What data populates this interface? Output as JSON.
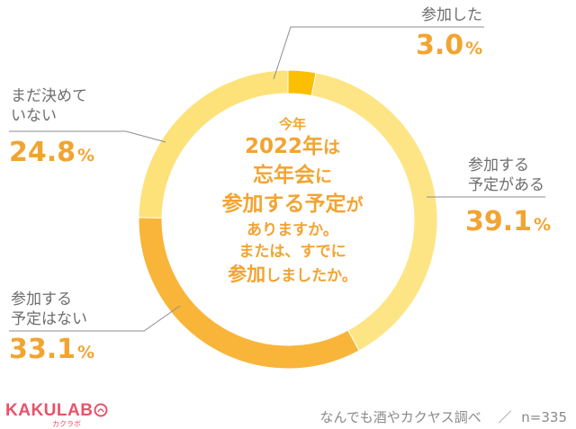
{
  "chart_data": {
    "type": "donut",
    "center_text": {
      "line1": "今年",
      "line2_em": "2022年",
      "line2_rest": "は",
      "line3_em": "忘年会",
      "line3_rest": "に",
      "line4_em": "参加する予定",
      "line4_rest": "が",
      "line5": "ありますか。",
      "line6": "または、すでに",
      "line7_em": "参加",
      "line7_rest": "しましたか。"
    },
    "slices": [
      {
        "label": "参加した",
        "value": 3.0,
        "display": "3.0",
        "color": "#fbbf00"
      },
      {
        "label": "参加する\n予定がある",
        "value": 39.1,
        "display": "39.1",
        "color": "#fde585"
      },
      {
        "label": "参加する\n予定はない",
        "value": 33.1,
        "display": "33.1",
        "color": "#f9b53a"
      },
      {
        "label": "まだ決めて\nいない",
        "value": 24.8,
        "display": "24.8",
        "color": "#fde27a"
      }
    ],
    "unit": "%",
    "sample_size": "n=335"
  },
  "footer": {
    "source": "なんでも酒やカクヤス調べ",
    "separator": "／",
    "sample": "n=335"
  },
  "logo": {
    "text": "KAKULAB",
    "sub": "カクラボ"
  }
}
